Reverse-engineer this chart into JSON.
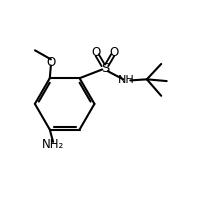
{
  "bg_color": "#ffffff",
  "line_color": "#000000",
  "lw": 1.5,
  "fig_width": 2.22,
  "fig_height": 1.99,
  "dpi": 100,
  "xlim": [
    0,
    10
  ],
  "ylim": [
    0,
    9
  ]
}
